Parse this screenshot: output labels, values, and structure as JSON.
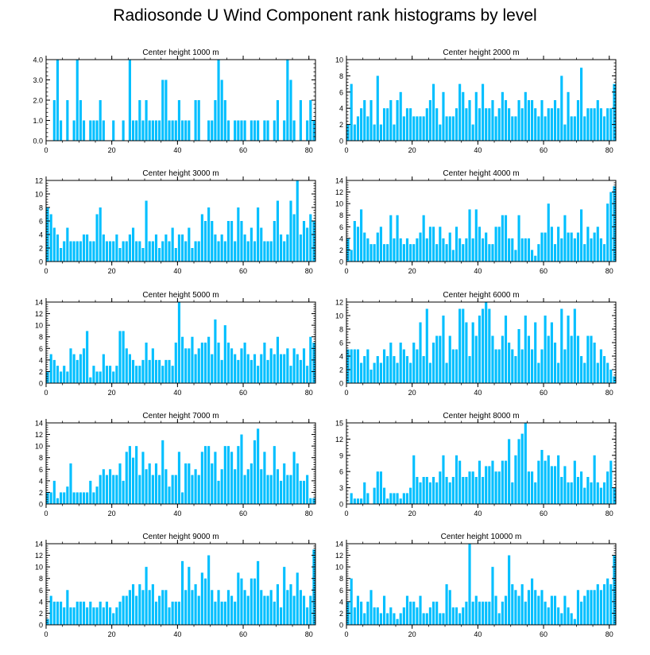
{
  "title": "Radiosonde U Wind Component rank histograms by level",
  "bar_color": "#00bfff",
  "chart_data": [
    {
      "type": "bar",
      "title": "Center height 1000 m",
      "xlabel": "",
      "ylabel": "",
      "xlim": [
        0,
        82
      ],
      "ylim": [
        0,
        4
      ],
      "xticks": [
        0,
        20,
        40,
        60,
        80
      ],
      "yticks": [
        0,
        1,
        2,
        3,
        4
      ],
      "ytick_labels": [
        "0.0",
        "1.0",
        "2.0",
        "3.0",
        "4.0"
      ],
      "values": [
        0,
        0,
        2,
        4,
        1,
        0,
        2,
        0,
        1,
        4,
        2,
        1,
        0,
        1,
        1,
        1,
        2,
        1,
        0,
        0,
        1,
        0,
        0,
        1,
        0,
        4,
        1,
        1,
        2,
        1,
        2,
        1,
        1,
        1,
        1,
        3,
        3,
        1,
        1,
        1,
        2,
        1,
        1,
        1,
        0,
        2,
        2,
        0,
        0,
        1,
        1,
        2,
        4,
        3,
        2,
        1,
        0,
        1,
        1,
        1,
        1,
        0,
        1,
        1,
        1,
        0,
        1,
        1,
        0,
        1,
        2,
        0,
        1,
        4,
        3,
        1,
        0,
        2,
        0,
        1,
        2,
        1
      ]
    },
    {
      "type": "bar",
      "title": "Center height 2000 m",
      "xlabel": "",
      "ylabel": "",
      "xlim": [
        0,
        82
      ],
      "ylim": [
        0,
        10
      ],
      "xticks": [
        0,
        20,
        40,
        60,
        80
      ],
      "yticks": [
        0,
        2,
        4,
        6,
        8,
        10
      ],
      "values": [
        2,
        7,
        2,
        3,
        4,
        5,
        3,
        5,
        2,
        8,
        2,
        4,
        4,
        5,
        2,
        5,
        6,
        3,
        4,
        4,
        3,
        3,
        3,
        3,
        4,
        5,
        7,
        4,
        2,
        6,
        3,
        3,
        3,
        4,
        7,
        6,
        4,
        5,
        2,
        6,
        4,
        7,
        4,
        4,
        5,
        3,
        4,
        6,
        5,
        4,
        3,
        3,
        5,
        4,
        6,
        5,
        5,
        4,
        3,
        5,
        3,
        4,
        4,
        5,
        4,
        8,
        2,
        6,
        3,
        3,
        5,
        9,
        3,
        4,
        4,
        4,
        5,
        4,
        3,
        4,
        4,
        7
      ]
    },
    {
      "type": "bar",
      "title": "Center height 3000 m",
      "xlabel": "",
      "ylabel": "",
      "xlim": [
        0,
        82
      ],
      "ylim": [
        0,
        12
      ],
      "xticks": [
        0,
        20,
        40,
        60,
        80
      ],
      "yticks": [
        0,
        2,
        4,
        6,
        8,
        10,
        12
      ],
      "values": [
        8,
        7,
        5,
        4,
        2,
        3,
        5,
        3,
        3,
        3,
        3,
        4,
        4,
        3,
        3,
        7,
        8,
        4,
        3,
        3,
        3,
        4,
        2,
        3,
        3,
        4,
        5,
        3,
        3,
        2,
        9,
        3,
        3,
        4,
        2,
        3,
        4,
        3,
        5,
        2,
        4,
        4,
        3,
        5,
        2,
        3,
        3,
        7,
        6,
        8,
        6,
        4,
        3,
        4,
        3,
        6,
        6,
        3,
        8,
        6,
        4,
        3,
        5,
        3,
        8,
        5,
        3,
        3,
        3,
        6,
        9,
        4,
        3,
        4,
        9,
        7,
        12,
        4,
        6,
        5,
        7,
        6
      ]
    },
    {
      "type": "bar",
      "title": "Center height 4000 m",
      "xlabel": "",
      "ylabel": "",
      "xlim": [
        0,
        82
      ],
      "ylim": [
        0,
        14
      ],
      "xticks": [
        0,
        20,
        40,
        60,
        80
      ],
      "yticks": [
        0,
        2,
        4,
        6,
        8,
        10,
        12,
        14
      ],
      "values": [
        4,
        2,
        7,
        6,
        9,
        5,
        4,
        3,
        3,
        5,
        6,
        3,
        3,
        8,
        4,
        8,
        4,
        3,
        4,
        3,
        3,
        4,
        5,
        8,
        4,
        6,
        6,
        3,
        6,
        4,
        3,
        5,
        2,
        6,
        4,
        3,
        4,
        9,
        4,
        9,
        6,
        4,
        5,
        3,
        3,
        6,
        6,
        8,
        8,
        4,
        4,
        2,
        8,
        4,
        4,
        4,
        2,
        1,
        3,
        5,
        5,
        10,
        6,
        3,
        6,
        4,
        8,
        5,
        5,
        4,
        5,
        9,
        3,
        6,
        4,
        5,
        6,
        4,
        3,
        10,
        12,
        13
      ]
    },
    {
      "type": "bar",
      "title": "Center height 5000 m",
      "xlabel": "",
      "ylabel": "",
      "xlim": [
        0,
        82
      ],
      "ylim": [
        0,
        14
      ],
      "xticks": [
        0,
        20,
        40,
        60,
        80
      ],
      "yticks": [
        0,
        2,
        4,
        6,
        8,
        10,
        12,
        14
      ],
      "values": [
        2,
        5,
        4,
        3,
        2,
        3,
        2,
        6,
        5,
        4,
        5,
        6,
        9,
        1,
        3,
        2,
        2,
        5,
        3,
        3,
        2,
        3,
        9,
        9,
        6,
        5,
        4,
        3,
        3,
        4,
        7,
        4,
        6,
        4,
        4,
        3,
        4,
        4,
        3,
        7,
        14,
        8,
        6,
        6,
        8,
        5,
        6,
        7,
        7,
        8,
        5,
        11,
        7,
        4,
        10,
        7,
        6,
        5,
        4,
        6,
        7,
        5,
        4,
        5,
        3,
        5,
        7,
        4,
        6,
        5,
        8,
        5,
        5,
        6,
        3,
        6,
        5,
        4,
        6,
        3,
        8,
        7
      ]
    },
    {
      "type": "bar",
      "title": "Center height 6000 m",
      "xlabel": "",
      "ylabel": "",
      "xlim": [
        0,
        82
      ],
      "ylim": [
        0,
        12
      ],
      "xticks": [
        0,
        20,
        40,
        60,
        80
      ],
      "yticks": [
        0,
        2,
        4,
        6,
        8,
        10,
        12
      ],
      "values": [
        5,
        5,
        5,
        5,
        3,
        4,
        5,
        2,
        3,
        4,
        3,
        5,
        4,
        6,
        4,
        3,
        6,
        5,
        4,
        3,
        6,
        5,
        9,
        4,
        11,
        3,
        6,
        7,
        7,
        10,
        3,
        7,
        5,
        5,
        11,
        11,
        9,
        4,
        9,
        7,
        10,
        11,
        12,
        11,
        7,
        5,
        5,
        7,
        10,
        6,
        5,
        4,
        8,
        5,
        10,
        7,
        5,
        9,
        3,
        5,
        10,
        7,
        9,
        6,
        3,
        11,
        5,
        10,
        7,
        11,
        7,
        4,
        3,
        7,
        7,
        6,
        3,
        5,
        4,
        3,
        2,
        1
      ]
    },
    {
      "type": "bar",
      "title": "Center height 7000 m",
      "xlabel": "",
      "ylabel": "",
      "xlim": [
        0,
        82
      ],
      "ylim": [
        0,
        14
      ],
      "xticks": [
        0,
        20,
        40,
        60,
        80
      ],
      "yticks": [
        0,
        2,
        4,
        6,
        8,
        10,
        12,
        14
      ],
      "values": [
        2,
        2,
        4,
        1,
        2,
        2,
        3,
        7,
        2,
        2,
        2,
        2,
        2,
        4,
        2,
        3,
        5,
        6,
        5,
        6,
        5,
        5,
        7,
        4,
        9,
        10,
        8,
        10,
        5,
        9,
        6,
        7,
        5,
        7,
        5,
        11,
        6,
        3,
        5,
        5,
        9,
        2,
        7,
        7,
        5,
        6,
        5,
        9,
        10,
        10,
        7,
        9,
        4,
        6,
        10,
        10,
        9,
        6,
        10,
        12,
        5,
        6,
        7,
        11,
        13,
        6,
        9,
        5,
        5,
        10,
        6,
        4,
        7,
        5,
        5,
        9,
        7,
        4,
        4,
        5,
        1,
        1
      ]
    },
    {
      "type": "bar",
      "title": "Center height 8000 m",
      "xlabel": "",
      "ylabel": "",
      "xlim": [
        0,
        82
      ],
      "ylim": [
        0,
        15
      ],
      "xticks": [
        0,
        20,
        40,
        60,
        80
      ],
      "yticks": [
        0,
        3,
        6,
        9,
        12,
        15
      ],
      "values": [
        0,
        2,
        1,
        1,
        1,
        4,
        2,
        0,
        3,
        6,
        6,
        3,
        1,
        2,
        2,
        2,
        1,
        2,
        2,
        3,
        9,
        5,
        4,
        5,
        5,
        4,
        5,
        4,
        6,
        9,
        5,
        4,
        5,
        9,
        8,
        5,
        5,
        6,
        6,
        5,
        8,
        5,
        7,
        7,
        8,
        6,
        6,
        8,
        8,
        12,
        4,
        9,
        12,
        13,
        15,
        6,
        6,
        4,
        8,
        10,
        8,
        9,
        7,
        7,
        9,
        5,
        7,
        4,
        4,
        8,
        5,
        6,
        3,
        5,
        4,
        9,
        4,
        3,
        4,
        6,
        8,
        3
      ]
    },
    {
      "type": "bar",
      "title": "Center height 9000 m",
      "xlabel": "",
      "ylabel": "",
      "xlim": [
        0,
        82
      ],
      "ylim": [
        0,
        14
      ],
      "xticks": [
        0,
        20,
        40,
        60,
        80
      ],
      "yticks": [
        0,
        2,
        4,
        6,
        8,
        10,
        12,
        14
      ],
      "values": [
        1,
        5,
        4,
        4,
        4,
        3,
        6,
        3,
        3,
        4,
        4,
        4,
        3,
        4,
        3,
        3,
        4,
        3,
        4,
        3,
        2,
        3,
        4,
        5,
        5,
        6,
        7,
        5,
        7,
        6,
        10,
        6,
        7,
        4,
        5,
        6,
        6,
        3,
        4,
        4,
        4,
        11,
        6,
        10,
        6,
        7,
        5,
        9,
        8,
        12,
        6,
        4,
        6,
        4,
        4,
        6,
        5,
        4,
        9,
        8,
        6,
        5,
        8,
        8,
        11,
        6,
        5,
        5,
        6,
        4,
        7,
        3,
        10,
        6,
        7,
        5,
        9,
        6,
        5,
        3,
        5,
        13
      ]
    },
    {
      "type": "bar",
      "title": "Center height 10000 m",
      "xlabel": "",
      "ylabel": "",
      "xlim": [
        0,
        82
      ],
      "ylim": [
        0,
        14
      ],
      "xticks": [
        0,
        20,
        40,
        60,
        80
      ],
      "yticks": [
        0,
        2,
        4,
        6,
        8,
        10,
        12,
        14
      ],
      "values": [
        4,
        8,
        3,
        5,
        4,
        2,
        4,
        6,
        3,
        3,
        2,
        5,
        2,
        3,
        2,
        1,
        2,
        3,
        5,
        4,
        4,
        3,
        5,
        2,
        2,
        3,
        4,
        4,
        2,
        2,
        7,
        6,
        3,
        3,
        2,
        3,
        4,
        14,
        4,
        5,
        4,
        4,
        4,
        4,
        10,
        5,
        2,
        4,
        5,
        12,
        7,
        6,
        5,
        7,
        4,
        6,
        8,
        6,
        5,
        6,
        4,
        3,
        5,
        5,
        3,
        2,
        5,
        3,
        2,
        1,
        6,
        4,
        5,
        6,
        6,
        6,
        7,
        6,
        7,
        8,
        7,
        12
      ]
    }
  ]
}
